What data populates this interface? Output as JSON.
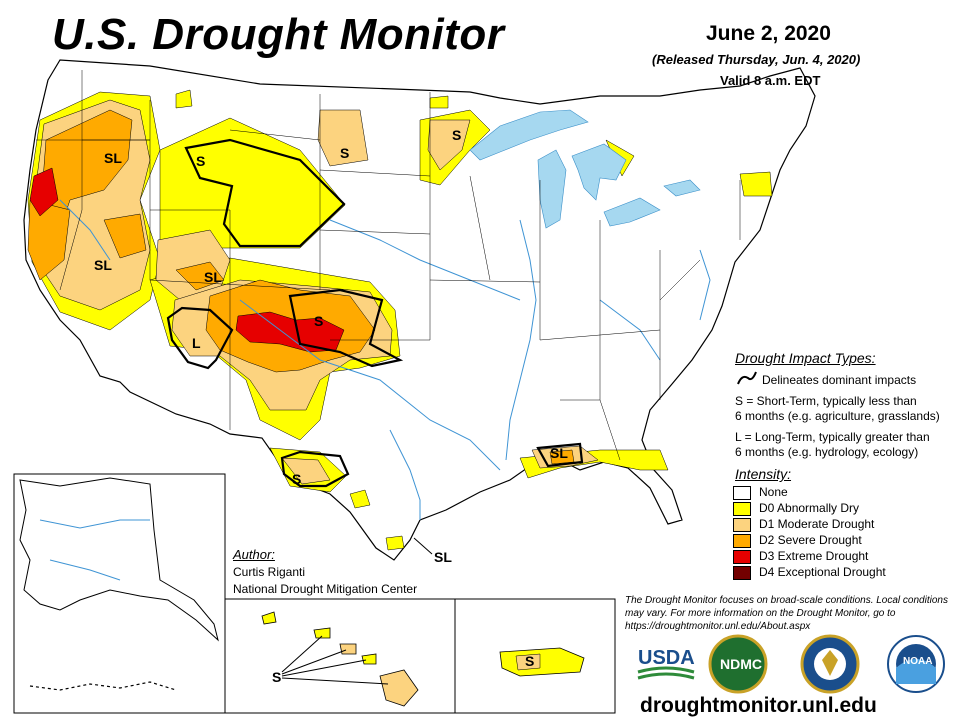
{
  "header": {
    "title": "U.S. Drought Monitor",
    "date": "June 2, 2020",
    "released": "(Released Thursday, Jun. 4, 2020)",
    "valid": "Valid 8 a.m. EDT"
  },
  "impact_types": {
    "heading": "Drought Impact Types:",
    "delineates": "Delineates dominant impacts",
    "short_term_1": "S = Short-Term, typically less than",
    "short_term_2": "6 months (e.g. agriculture, grasslands)",
    "long_term_1": "L = Long-Term, typically greater than",
    "long_term_2": "6 months (e.g. hydrology, ecology)"
  },
  "intensity": {
    "heading": "Intensity:",
    "levels": [
      {
        "label": "None",
        "color": "#ffffff"
      },
      {
        "label": "D0 Abnormally Dry",
        "color": "#ffff00"
      },
      {
        "label": "D1 Moderate Drought",
        "color": "#fcd37f"
      },
      {
        "label": "D2 Severe Drought",
        "color": "#ffaa00"
      },
      {
        "label": "D3 Extreme Drought",
        "color": "#e60000"
      },
      {
        "label": "D4 Exceptional Drought",
        "color": "#730000"
      }
    ]
  },
  "author": {
    "heading": "Author:",
    "name": "Curtis Riganti",
    "organization": "National Drought Mitigation Center"
  },
  "disclaimer": "The Drought Monitor focuses on broad-scale conditions. Local conditions may vary. For more information on the Drought Monitor, go to https://droughtmonitor.unl.edu/About.aspx",
  "website": "droughtmonitor.unl.edu",
  "map_labels": {
    "sl_oregon": "SL",
    "s_idaho": "S",
    "s_montana": "S",
    "s_minnesota": "S",
    "sl_nevada": "SL",
    "sl_utah": "SL",
    "l_arizona": "L",
    "s_colorado": "S",
    "s_texas": "S",
    "sl_gulf": "SL",
    "sl_texas_coast": "SL",
    "s_hawaii": "S",
    "s_puerto_rico": "S"
  },
  "logos": {
    "usda": "USDA",
    "ndmc": "NDMC",
    "noaa": "NOAA"
  }
}
